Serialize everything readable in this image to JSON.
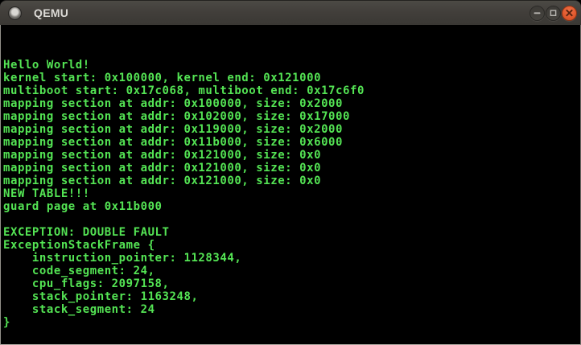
{
  "window": {
    "title": "QEMU",
    "titlebar_color": "#403e3a",
    "controls": [
      {
        "id": "minimize",
        "icon": "minimize-icon"
      },
      {
        "id": "maximize",
        "icon": "maximize-icon"
      },
      {
        "id": "close",
        "icon": "close-icon",
        "color": "#df582d"
      }
    ]
  },
  "terminal": {
    "background": "#000000",
    "text_color": "#54e454",
    "lines": [
      "Hello World!",
      "kernel start: 0x100000, kernel end: 0x121000",
      "multiboot start: 0x17c068, multiboot end: 0x17c6f0",
      "mapping section at addr: 0x100000, size: 0x2000",
      "mapping section at addr: 0x102000, size: 0x17000",
      "mapping section at addr: 0x119000, size: 0x2000",
      "mapping section at addr: 0x11b000, size: 0x6000",
      "mapping section at addr: 0x121000, size: 0x0",
      "mapping section at addr: 0x121000, size: 0x0",
      "mapping section at addr: 0x121000, size: 0x0",
      "NEW TABLE!!!",
      "guard page at 0x11b000",
      "",
      "EXCEPTION: DOUBLE FAULT",
      "ExceptionStackFrame {",
      "    instruction_pointer: 1128344,",
      "    code_segment: 24,",
      "    cpu_flags: 2097158,",
      "    stack_pointer: 1163248,",
      "    stack_segment: 24",
      "}"
    ]
  }
}
